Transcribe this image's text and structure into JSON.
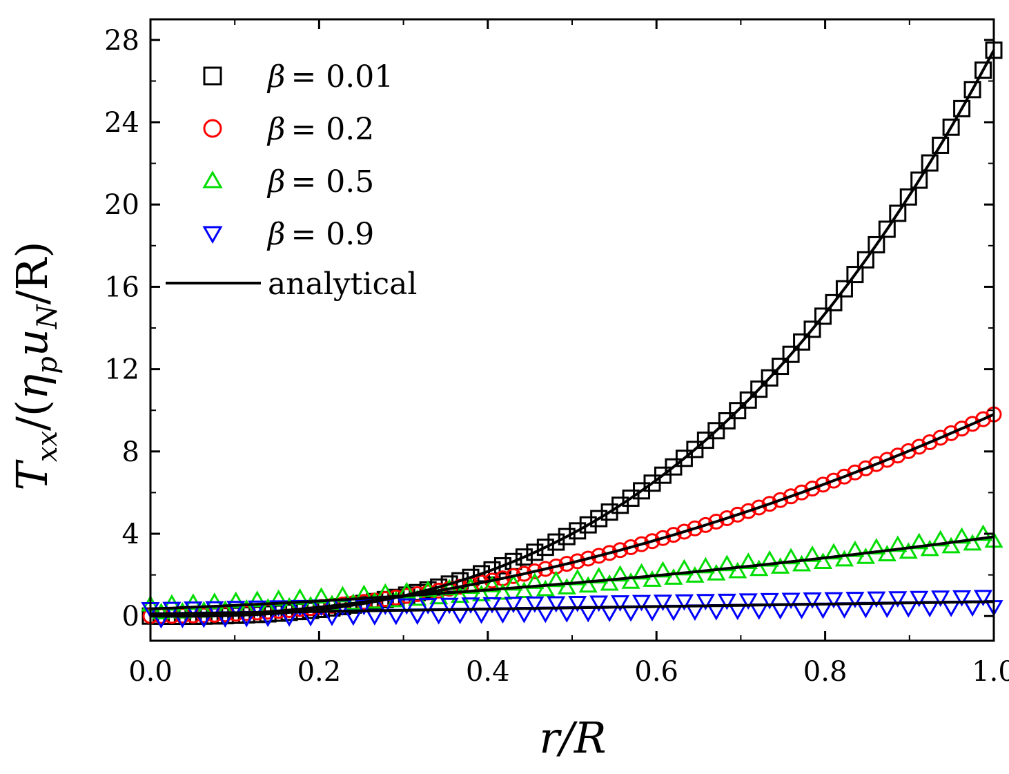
{
  "chart_data": {
    "type": "scatter",
    "title": "",
    "xlabel": "r/R",
    "ylabel": {
      "T": "T",
      "xx": "xx",
      "open": "/(",
      "eta": "η",
      "p": "p",
      "u": "u",
      "N": "N",
      "close": "/R)"
    },
    "xlim": [
      0.0,
      1.0
    ],
    "ylim": [
      -1.2,
      29.0
    ],
    "x_ticks": [
      {
        "value": 0.0,
        "label": "0.0"
      },
      {
        "value": 0.2,
        "label": "0.2"
      },
      {
        "value": 0.4,
        "label": "0.4"
      },
      {
        "value": 0.6,
        "label": "0.6"
      },
      {
        "value": 0.8,
        "label": "0.8"
      },
      {
        "value": 1.0,
        "label": "1.0"
      }
    ],
    "y_ticks": [
      {
        "value": 0,
        "label": "0"
      },
      {
        "value": 4,
        "label": "4"
      },
      {
        "value": 8,
        "label": "8"
      },
      {
        "value": 12,
        "label": "12"
      },
      {
        "value": 16,
        "label": "16"
      },
      {
        "value": 20,
        "label": "20"
      },
      {
        "value": 24,
        "label": "24"
      },
      {
        "value": 28,
        "label": "28"
      }
    ],
    "series": [
      {
        "name": "β = 0.01",
        "beta_symbol": "β",
        "value_text": "= 0.01",
        "marker": "square",
        "color": "#000000",
        "coef": [
          0.0,
          -0.5,
          6.0,
          22.0,
          0.0
        ]
      },
      {
        "name": "β = 0.2",
        "beta_symbol": "β",
        "value_text": "= 0.2",
        "marker": "circle",
        "color": "#ff0000",
        "coef": [
          0.0,
          0.0,
          11.0,
          -1.2,
          0.0
        ]
      },
      {
        "name": "β = 0.5",
        "beta_symbol": "β",
        "value_text": "= 0.5",
        "marker": "triangle-up",
        "color": "#00dd00",
        "coef": [
          0.35,
          1.5,
          2.0,
          0.0,
          0.2
        ]
      },
      {
        "name": "β = 0.9",
        "beta_symbol": "β",
        "value_text": "= 0.9",
        "marker": "triangle-down",
        "color": "#0000ff",
        "coef": [
          0.1,
          0.6,
          0.0,
          0.0,
          0.25
        ]
      }
    ],
    "analytical": {
      "name": "analytical",
      "color": "#000000"
    },
    "points_per_series": 80,
    "legend_position": "top-left"
  }
}
